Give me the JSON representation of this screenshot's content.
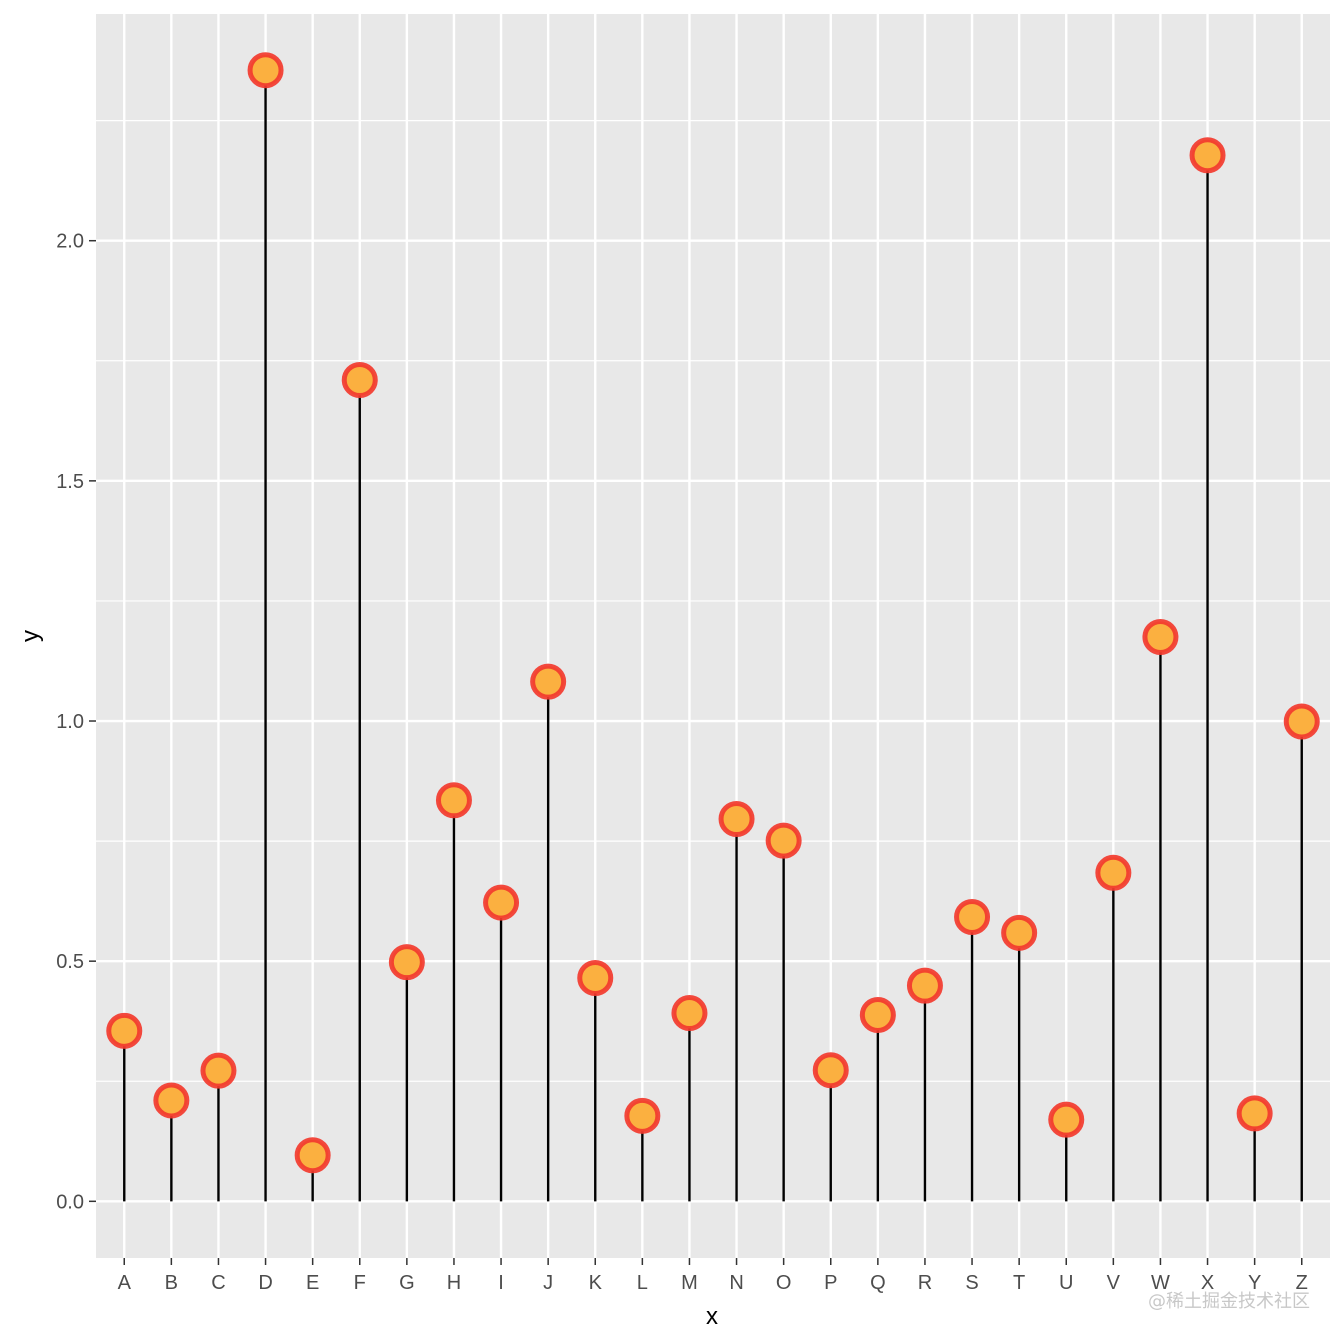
{
  "chart_data": {
    "type": "lollipop",
    "categories": [
      "A",
      "B",
      "C",
      "D",
      "E",
      "F",
      "G",
      "H",
      "I",
      "J",
      "K",
      "L",
      "M",
      "N",
      "O",
      "P",
      "Q",
      "R",
      "S",
      "T",
      "U",
      "V",
      "W",
      "X",
      "Y",
      "Z"
    ],
    "values": [
      0.355,
      0.21,
      0.272,
      2.355,
      0.096,
      1.71,
      0.498,
      0.835,
      0.622,
      1.082,
      0.465,
      0.178,
      0.392,
      0.796,
      0.751,
      0.273,
      0.388,
      0.449,
      0.592,
      0.559,
      0.17,
      0.684,
      1.175,
      2.178,
      0.183,
      0.999
    ],
    "xlabel": "x",
    "ylabel": "y",
    "ylim": [
      -0.118,
      2.472
    ],
    "y_ticks": [
      "0.0",
      "0.5",
      "1.0",
      "1.5",
      "2.0"
    ],
    "y_tick_values": [
      0,
      0.5,
      1.0,
      1.5,
      2.0
    ],
    "grid": true,
    "colors": {
      "panel_background": "#e8e8e8",
      "grid": "#ffffff",
      "stem": "#000000",
      "marker_fill": "#fbb040",
      "marker_stroke": "#f23a2e",
      "tick_text": "#4d4d4d"
    }
  },
  "watermark": "@稀土掘金技术社区"
}
